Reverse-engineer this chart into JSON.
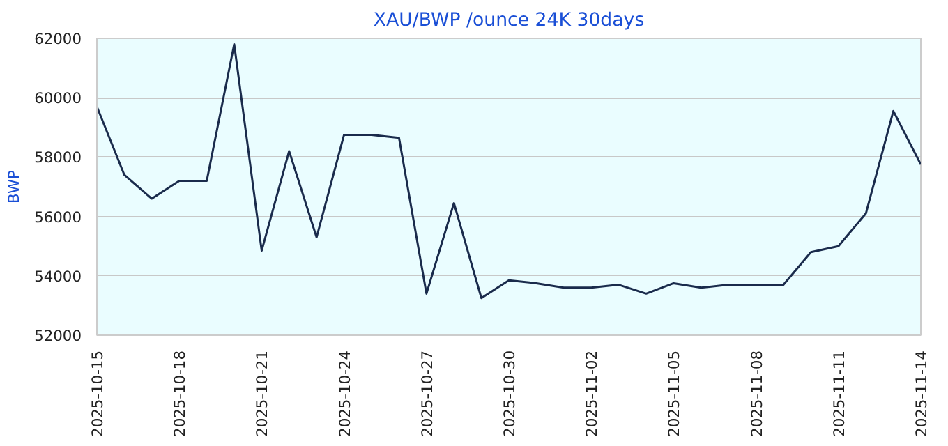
{
  "chart_data": {
    "type": "line",
    "title": "XAU/BWP /ounce 24K 30days",
    "ylabel": "BWP",
    "x": [
      "2025-10-15",
      "2025-10-16",
      "2025-10-17",
      "2025-10-18",
      "2025-10-19",
      "2025-10-20",
      "2025-10-21",
      "2025-10-22",
      "2025-10-23",
      "2025-10-24",
      "2025-10-25",
      "2025-10-26",
      "2025-10-27",
      "2025-10-28",
      "2025-10-29",
      "2025-10-30",
      "2025-10-31",
      "2025-11-01",
      "2025-11-02",
      "2025-11-03",
      "2025-11-04",
      "2025-11-05",
      "2025-11-06",
      "2025-11-07",
      "2025-11-08",
      "2025-11-09",
      "2025-11-10",
      "2025-11-11",
      "2025-11-12",
      "2025-11-13",
      "2025-11-14"
    ],
    "series": [
      {
        "color": "#1a2b4c",
        "values": [
          59700,
          57400,
          56600,
          57200,
          57200,
          61800,
          54850,
          58200,
          55300,
          58750,
          58750,
          58650,
          53400,
          56450,
          53250,
          53850,
          53750,
          53600,
          53600,
          53700,
          53400,
          53750,
          53600,
          53700,
          53700,
          53700,
          54800,
          55000,
          56100,
          59550,
          57750
        ]
      }
    ],
    "xlim": [
      "2025-10-15",
      "2025-11-14"
    ],
    "ylim": [
      52000,
      62000
    ],
    "xticks": [
      "2025-10-15",
      "2025-10-18",
      "2025-10-21",
      "2025-10-24",
      "2025-10-27",
      "2025-10-30",
      "2025-11-02",
      "2025-11-05",
      "2025-11-08",
      "2025-11-11",
      "2025-11-14"
    ],
    "yticks": [
      52000,
      54000,
      56000,
      58000,
      60000,
      62000
    ],
    "grid": "y",
    "marker": "none",
    "line_style": "solid"
  }
}
